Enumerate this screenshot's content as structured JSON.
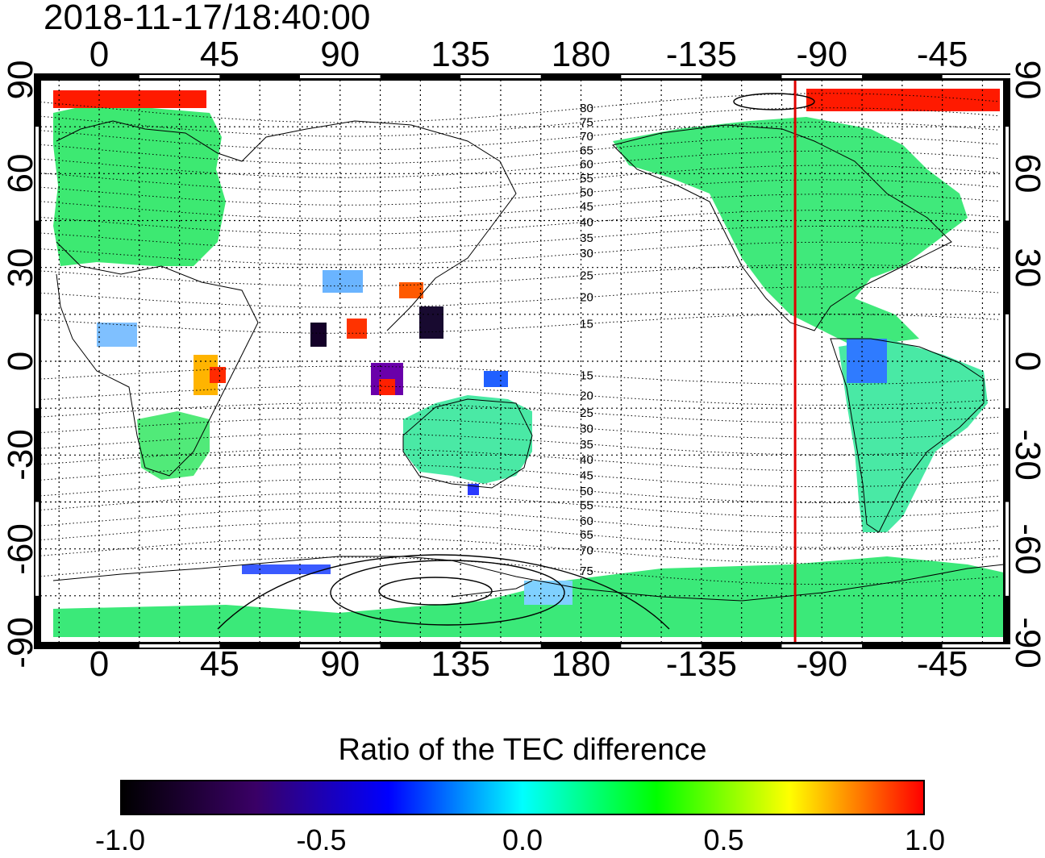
{
  "timestamp": "2018-11-17/18:40:00",
  "map": {
    "projection": "equirectangular",
    "lon_range": [
      -22,
      338
    ],
    "lat_range": [
      -90,
      90
    ],
    "grid_step_deg": 15,
    "frame_color": "#000000"
  },
  "axes": {
    "top_ticks": [
      {
        "label": "0",
        "lon": 0
      },
      {
        "label": "45",
        "lon": 45
      },
      {
        "label": "90",
        "lon": 90
      },
      {
        "label": "135",
        "lon": 135
      },
      {
        "label": "180",
        "lon": 180
      },
      {
        "label": "-135",
        "lon": 225
      },
      {
        "label": "-90",
        "lon": 270
      },
      {
        "label": "-45",
        "lon": 315
      }
    ],
    "bottom_ticks": [
      {
        "label": "0",
        "lon": 0
      },
      {
        "label": "45",
        "lon": 45
      },
      {
        "label": "90",
        "lon": 90
      },
      {
        "label": "135",
        "lon": 135
      },
      {
        "label": "180",
        "lon": 180
      },
      {
        "label": "-135",
        "lon": 225
      },
      {
        "label": "-90",
        "lon": 270
      },
      {
        "label": "-45",
        "lon": 315
      }
    ],
    "left_ticks": [
      {
        "label": "90",
        "lat": 90
      },
      {
        "label": "60",
        "lat": 60
      },
      {
        "label": "30",
        "lat": 30
      },
      {
        "label": "0",
        "lat": 0
      },
      {
        "label": "-30",
        "lat": -30
      },
      {
        "label": "-60",
        "lat": -60
      },
      {
        "label": "-90",
        "lat": -90
      }
    ],
    "right_ticks": [
      {
        "label": "90",
        "lat": 90
      },
      {
        "label": "60",
        "lat": 60
      },
      {
        "label": "30",
        "lat": 30
      },
      {
        "label": "0",
        "lat": 0
      },
      {
        "label": "-30",
        "lat": -30
      },
      {
        "label": "-60",
        "lat": -60
      },
      {
        "label": "-90",
        "lat": -90
      }
    ]
  },
  "terminator_line": {
    "lon": 260,
    "color": "#e00000"
  },
  "magnetic_latitude_labels": {
    "lon": 182,
    "north": [
      {
        "label": "80",
        "lat": 81
      },
      {
        "label": "75",
        "lat": 76.5
      },
      {
        "label": "70",
        "lat": 72
      },
      {
        "label": "65",
        "lat": 67.5
      },
      {
        "label": "60",
        "lat": 63
      },
      {
        "label": "55",
        "lat": 58.5
      },
      {
        "label": "50",
        "lat": 54
      },
      {
        "label": "45",
        "lat": 49.5
      },
      {
        "label": "40",
        "lat": 44.5
      },
      {
        "label": "35",
        "lat": 39.5
      },
      {
        "label": "30",
        "lat": 34.5
      },
      {
        "label": "25",
        "lat": 27.5
      },
      {
        "label": "20",
        "lat": 20.5
      },
      {
        "label": "15",
        "lat": 12
      }
    ],
    "south": [
      {
        "label": "15",
        "lat": -4.5
      },
      {
        "label": "20",
        "lat": -11
      },
      {
        "label": "25",
        "lat": -16.5
      },
      {
        "label": "30",
        "lat": -21.5
      },
      {
        "label": "35",
        "lat": -26.5
      },
      {
        "label": "40",
        "lat": -31.5
      },
      {
        "label": "45",
        "lat": -36.5
      },
      {
        "label": "50",
        "lat": -41.5
      },
      {
        "label": "55",
        "lat": -46
      },
      {
        "label": "60",
        "lat": -51
      },
      {
        "label": "65",
        "lat": -55.5
      },
      {
        "label": "70",
        "lat": -60.5
      },
      {
        "label": "75",
        "lat": -67
      }
    ]
  },
  "colorbar": {
    "title": "Ratio of the TEC difference",
    "range": [
      -1.0,
      1.0
    ],
    "tick_labels": [
      {
        "label": "-1.0",
        "value": -1.0
      },
      {
        "label": "-0.5",
        "value": -0.5
      },
      {
        "label": "0.0",
        "value": 0.0
      },
      {
        "label": "0.5",
        "value": 0.5
      },
      {
        "label": "1.0",
        "value": 1.0
      }
    ],
    "colormap": [
      "#000000",
      "#3a0066",
      "#0000ff",
      "#00ffff",
      "#00ff00",
      "#ffff00",
      "#ff0000"
    ]
  }
}
